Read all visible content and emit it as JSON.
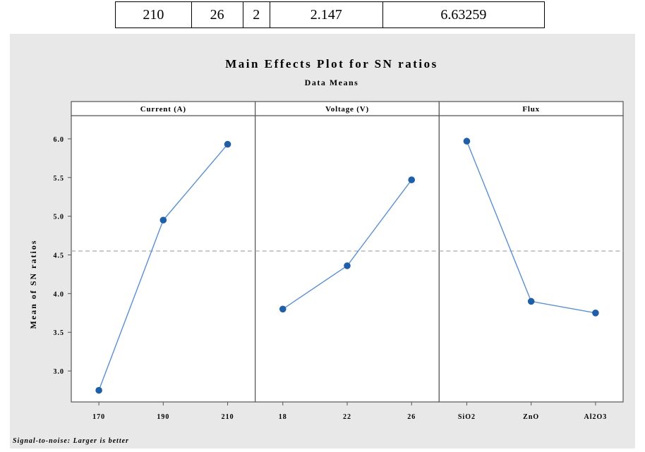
{
  "table": {
    "cells": [
      "210",
      "26",
      "2",
      "2.147",
      "6.63259"
    ]
  },
  "chart_data": {
    "type": "line",
    "title": "Main Effects Plot for SN ratios",
    "subtitle": "Data Means",
    "ylabel": "Mean of SN ratios",
    "ylim": [
      2.6,
      6.3
    ],
    "yticks": [
      "3.0",
      "3.5",
      "4.0",
      "4.5",
      "5.0",
      "5.5",
      "6.0"
    ],
    "overall_mean": 4.55,
    "grid": false,
    "panels": [
      {
        "name": "Current (A)",
        "categories": [
          "170",
          "190",
          "210"
        ],
        "values": [
          2.75,
          4.95,
          5.93
        ]
      },
      {
        "name": "Voltage (V)",
        "categories": [
          "18",
          "22",
          "26"
        ],
        "values": [
          3.8,
          4.36,
          5.47
        ]
      },
      {
        "name": "Flux",
        "categories": [
          "SiO2",
          "ZnO",
          "Al2O3"
        ],
        "values": [
          5.97,
          3.9,
          3.75
        ]
      }
    ],
    "footnote": "Signal-to-noise: Larger is better",
    "colors": {
      "line": "#5b8fd0",
      "marker": "#1f5fa8",
      "background": "#e8e8e8",
      "panel": "#ffffff",
      "reference": "#aaaaaa"
    }
  }
}
